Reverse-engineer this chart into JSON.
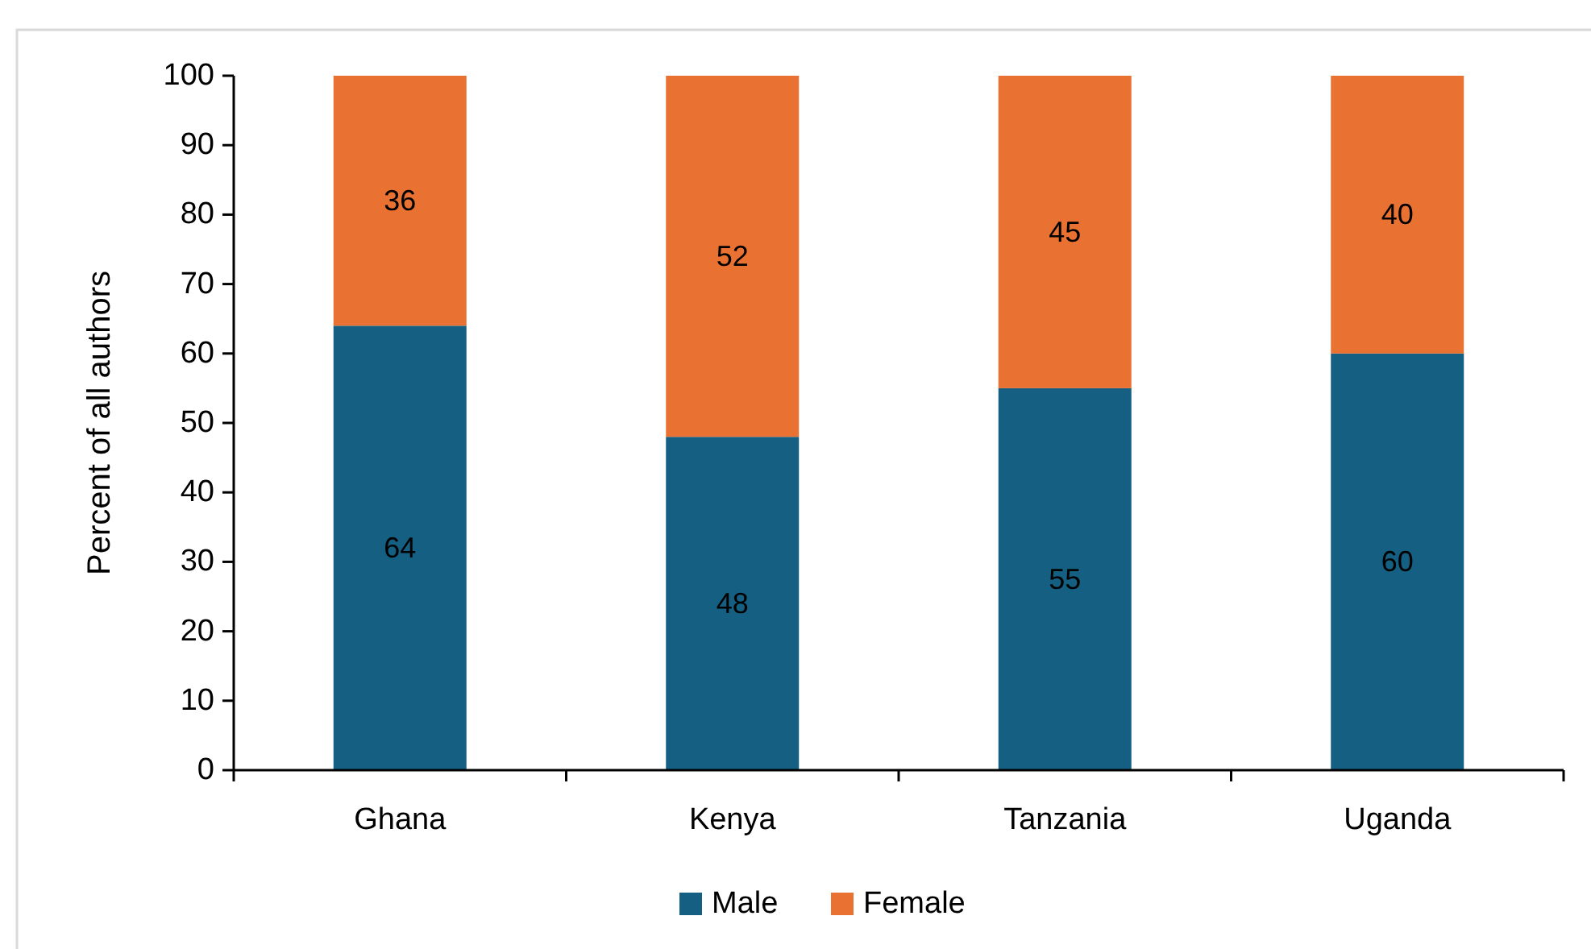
{
  "chart_data": {
    "type": "bar",
    "stacked": true,
    "ylabel": "Percent of all authors",
    "categories": [
      "Ghana",
      "Kenya",
      "Tanzania",
      "Uganda"
    ],
    "series": [
      {
        "name": "Male",
        "color": "#156082",
        "values": [
          64,
          48,
          55,
          60
        ]
      },
      {
        "name": "Female",
        "color": "#e97132",
        "values": [
          36,
          52,
          45,
          40
        ]
      }
    ],
    "ylim": [
      0,
      100
    ],
    "yticks": [
      0,
      10,
      20,
      30,
      40,
      50,
      60,
      70,
      80,
      90,
      100
    ],
    "grid": false,
    "legend": "bottom",
    "data_labels": true
  }
}
